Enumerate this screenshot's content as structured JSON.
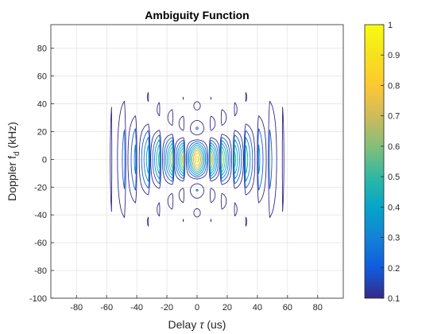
{
  "chart_data": {
    "type": "contour",
    "title": "Ambiguity Function",
    "xlabel": {
      "prefix": "Delay ",
      "symbol": "τ",
      "suffix": " (us)"
    },
    "ylabel": {
      "prefix": "Doppler f",
      "subscript": "d",
      "suffix": " (kHz)"
    },
    "xlim": [
      -97,
      97
    ],
    "ylim": [
      -100,
      97
    ],
    "xticks": [
      -80,
      -60,
      -40,
      -20,
      0,
      20,
      40,
      60,
      80
    ],
    "xtick_labels": [
      "-80",
      "-60",
      "-40",
      "-20",
      "0",
      "20",
      "40",
      "60",
      "80"
    ],
    "yticks": [
      -100,
      -80,
      -60,
      -40,
      -20,
      0,
      20,
      40,
      60,
      80
    ],
    "ytick_labels": [
      "-100",
      "-80",
      "-60",
      "-40",
      "-20",
      "0",
      "20",
      "40",
      "60",
      "80"
    ],
    "grid": true,
    "colormap": "parula",
    "contour_levels": [
      0.1,
      0.2,
      0.3,
      0.4,
      0.5,
      0.6,
      0.7,
      0.8,
      0.9,
      1.0
    ],
    "colorbar": {
      "range": [
        0.1,
        1
      ],
      "ticks": [
        0.1,
        0.2,
        0.3,
        0.4,
        0.5,
        0.6,
        0.7,
        0.8,
        0.9,
        1
      ],
      "tick_labels": [
        "0.1",
        "0.2",
        "0.3",
        "0.4",
        "0.5",
        "0.6",
        "0.7",
        "0.8",
        "0.9",
        "1"
      ]
    },
    "peak": {
      "x": 0,
      "y": 0,
      "value": 1
    },
    "colors": {
      "level_0.1": "#352a87",
      "level_0.2": "#0f5cdd",
      "level_0.3": "#1481d6",
      "level_0.4": "#06a4ca",
      "level_0.5": "#2eb7a4",
      "level_0.6": "#87bf77",
      "level_0.7": "#d1bb59",
      "level_0.8": "#fec832",
      "level_0.9": "#f5e21e"
    }
  }
}
